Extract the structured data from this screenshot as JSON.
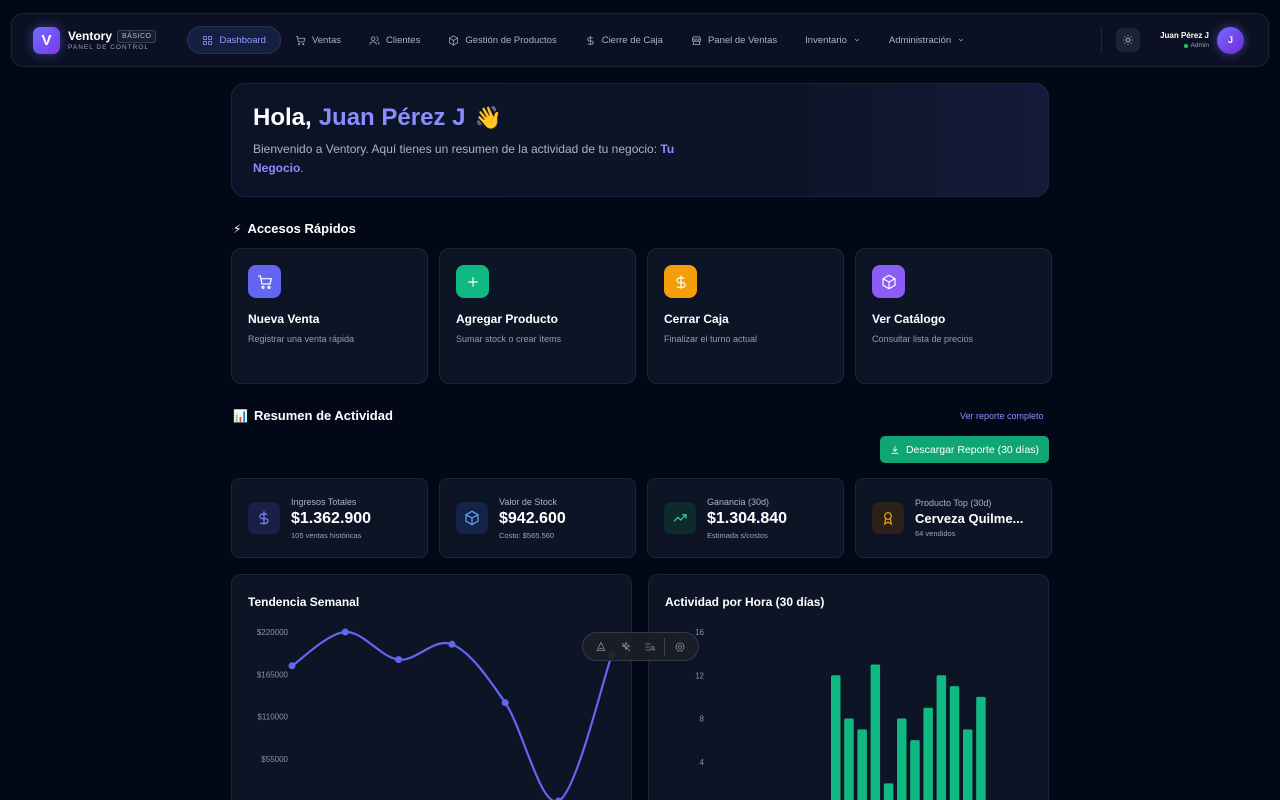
{
  "brand": {
    "logo_letter": "V",
    "name": "Ventory",
    "badge": "BÁSICO",
    "subtitle": "PANEL DE CONTROL"
  },
  "nav": {
    "items": [
      {
        "label": "Dashboard",
        "icon": "dashboard-icon",
        "active": true
      },
      {
        "label": "Ventas",
        "icon": "cart-icon"
      },
      {
        "label": "Clientes",
        "icon": "users-icon"
      },
      {
        "label": "Gestión de Productos",
        "icon": "box-icon"
      },
      {
        "label": "Cierre de Caja",
        "icon": "dollar-icon"
      },
      {
        "label": "Panel de Ventas",
        "icon": "store-icon"
      },
      {
        "label": "Inventario",
        "icon": "chevron-down-icon"
      },
      {
        "label": "Administración",
        "icon": "chevron-down-icon"
      }
    ]
  },
  "user": {
    "name": "Juan Pérez J",
    "role": "Admin",
    "avatar_letter": "J"
  },
  "welcome": {
    "greeting": "Hola,",
    "name": "Juan Pérez J",
    "emoji": "👋",
    "text": "Bienvenido a Ventory. Aquí tienes un resumen de la actividad de tu negocio:",
    "business": "Tu Negocio",
    "end": "."
  },
  "quick_access": {
    "emoji": "⚡",
    "title": "Accesos Rápidos",
    "cards": [
      {
        "title": "Nueva Venta",
        "subtitle": "Registrar una venta rápida",
        "icon": "cart-icon",
        "color": "#6366f1"
      },
      {
        "title": "Agregar Producto",
        "subtitle": "Sumar stock o crear ítems",
        "icon": "plus-icon",
        "color": "#10b981"
      },
      {
        "title": "Cerrar Caja",
        "subtitle": "Finalizar el turno actual",
        "icon": "dollar-icon",
        "color": "#f59e0b"
      },
      {
        "title": "Ver Catálogo",
        "subtitle": "Consultar lista de precios",
        "icon": "box-icon",
        "color": "#8b5cf6"
      }
    ]
  },
  "activity": {
    "emoji": "📊",
    "title": "Resumen de Actividad",
    "report_link": "Ver reporte completo",
    "download_label": "Descargar Reporte (30 días)"
  },
  "stats": [
    {
      "label": "Ingresos Totales",
      "value": "$1.362.900",
      "sub": "105 ventas históricas",
      "icon": "dollar-icon",
      "color": "#818cf8",
      "bg": "#1a1f45"
    },
    {
      "label": "Valor de Stock",
      "value": "$942.600",
      "sub": "Costo: $565.560",
      "icon": "box-icon",
      "color": "#60a5fa",
      "bg": "#142447"
    },
    {
      "label": "Ganancia (30d)",
      "value": "$1.304.840",
      "sub": "Estimada s/costos",
      "icon": "trending-up-icon",
      "color": "#34d399",
      "bg": "#0f2a2a"
    },
    {
      "label": "Producto Top (30d)",
      "value": "Cerveza Quilme...",
      "sub": "64 vendidos",
      "icon": "award-icon",
      "color": "#f59e0b",
      "bg": "#2a2118"
    }
  ],
  "chart_data": [
    {
      "type": "line",
      "title": "Tendencia Semanal",
      "yticks": [
        "$220000",
        "$165000",
        "$110000",
        "$55000"
      ],
      "ytick_values": [
        220000,
        165000,
        110000,
        55000
      ],
      "ylim": [
        0,
        220000
      ],
      "values": [
        176000,
        220000,
        184000,
        204000,
        128000,
        0,
        190000
      ],
      "color": "#6366f1",
      "grid": false
    },
    {
      "type": "bar",
      "title": "Actividad por Hora (30 días)",
      "yticks": [
        "16",
        "12",
        "8",
        "4"
      ],
      "ytick_values": [
        16,
        12,
        8,
        4
      ],
      "ylim": [
        0,
        16
      ],
      "values": [
        12,
        8,
        7,
        13,
        2,
        8,
        6,
        9,
        12,
        11,
        7,
        10
      ],
      "color": "#10b981",
      "grid": false
    }
  ],
  "colors": {
    "accent": "#6366f1",
    "success": "#10b981",
    "background": "#030817"
  }
}
